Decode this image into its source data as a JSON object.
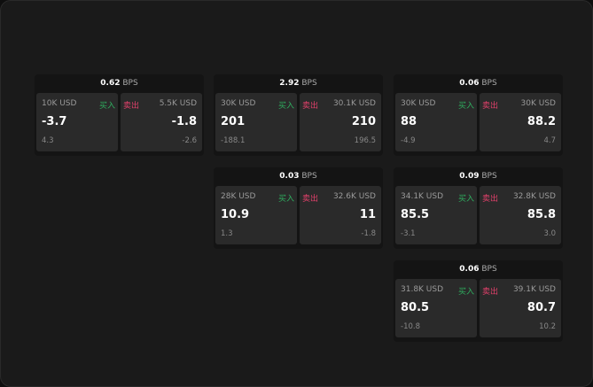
{
  "unit": "BPS",
  "buy_label": "买入",
  "sell_label": "卖出",
  "colors": {
    "buy": "#2fae5f",
    "sell": "#e0406a"
  },
  "widgets": [
    {
      "spread": "0.62",
      "buy": {
        "size": "10K USD",
        "price": "-3.7",
        "change": "4.3"
      },
      "sell": {
        "size": "5.5K USD",
        "price": "-1.8",
        "change": "-2.6"
      }
    },
    {
      "spread": "2.92",
      "buy": {
        "size": "30K USD",
        "price": "201",
        "change": "-188.1"
      },
      "sell": {
        "size": "30.1K USD",
        "price": "210",
        "change": "196.5"
      }
    },
    {
      "spread": "0.06",
      "buy": {
        "size": "30K USD",
        "price": "88",
        "change": "-4.9"
      },
      "sell": {
        "size": "30K USD",
        "price": "88.2",
        "change": "4.7"
      }
    },
    {
      "spread": "0.03",
      "buy": {
        "size": "28K USD",
        "price": "10.9",
        "change": "1.3"
      },
      "sell": {
        "size": "32.6K USD",
        "price": "11",
        "change": "-1.8"
      }
    },
    {
      "spread": "0.09",
      "buy": {
        "size": "34.1K USD",
        "price": "85.5",
        "change": "-3.1"
      },
      "sell": {
        "size": "32.8K USD",
        "price": "85.8",
        "change": "3.0"
      }
    },
    {
      "spread": "0.06",
      "buy": {
        "size": "31.8K USD",
        "price": "80.5",
        "change": "-10.8"
      },
      "sell": {
        "size": "39.1K USD",
        "price": "80.7",
        "change": "10.2"
      }
    }
  ]
}
